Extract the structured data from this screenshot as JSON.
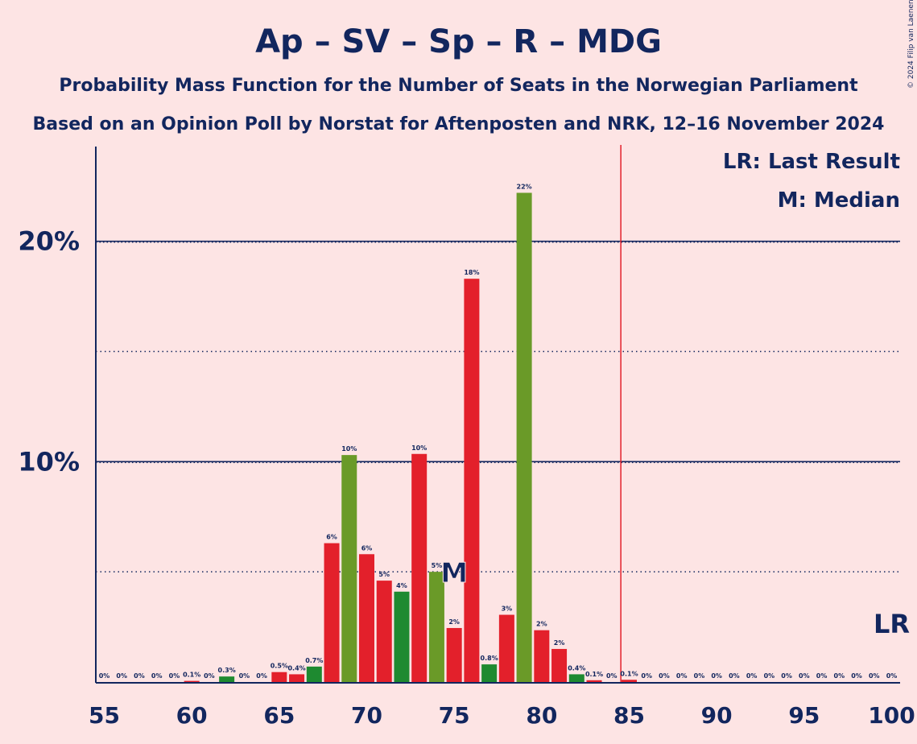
{
  "title": "Ap – SV – Sp – R – MDG",
  "subtitle1": "Probability Mass Function for the Number of Seats in the Norwegian Parliament",
  "subtitle2": "Based on an Opinion Poll by Norstat for Aftenposten and NRK, 12–16 November 2024",
  "copyright": "© 2024 Filip van Laenen",
  "legend": {
    "last_result": "LR: Last Result",
    "median": "M: Median"
  },
  "colors": {
    "background": "#FDE4E4",
    "text": "#12265e",
    "red": "#E3202B",
    "green": "#6A9A28",
    "darkgreen": "#1E8A30",
    "lr_line": "#E3202B"
  },
  "chart_data": {
    "type": "bar",
    "xlabel": "",
    "ylabel": "",
    "xlim": [
      55,
      100
    ],
    "ylim": [
      0,
      24.3
    ],
    "y_ticks": [
      {
        "value": 10,
        "label": "10%"
      },
      {
        "value": 20,
        "label": "20%"
      }
    ],
    "y_dotted": [
      5,
      15
    ],
    "x_ticks": [
      55,
      60,
      65,
      70,
      75,
      80,
      85,
      90,
      95,
      100
    ],
    "last_result": 85,
    "last_result_label": "LR",
    "median": 75,
    "median_label": "M",
    "median_value": 5,
    "bars": [
      {
        "x": 55,
        "value": 0,
        "label": "0%",
        "color": "red"
      },
      {
        "x": 56,
        "value": 0,
        "label": "0%",
        "color": "red"
      },
      {
        "x": 57,
        "value": 0,
        "label": "0%",
        "color": "red"
      },
      {
        "x": 58,
        "value": 0,
        "label": "0%",
        "color": "red"
      },
      {
        "x": 59,
        "value": 0,
        "label": "0%",
        "color": "red"
      },
      {
        "x": 60,
        "value": 0.05,
        "label": "0.1%",
        "color": "red"
      },
      {
        "x": 61,
        "value": 0,
        "label": "0%",
        "color": "red"
      },
      {
        "x": 62,
        "value": 0.25,
        "label": "0.3%",
        "color": "darkgreen"
      },
      {
        "x": 63,
        "value": 0,
        "label": "0%",
        "color": "red"
      },
      {
        "x": 64,
        "value": 0,
        "label": "0%",
        "color": "red"
      },
      {
        "x": 65,
        "value": 0.45,
        "label": "0.5%",
        "color": "red"
      },
      {
        "x": 66,
        "value": 0.35,
        "label": "0.4%",
        "color": "red"
      },
      {
        "x": 67,
        "value": 0.7,
        "label": "0.7%",
        "color": "darkgreen"
      },
      {
        "x": 68,
        "value": 6.3,
        "label": "6%",
        "color": "red"
      },
      {
        "x": 69,
        "value": 10.3,
        "label": "10%",
        "color": "green"
      },
      {
        "x": 70,
        "value": 5.8,
        "label": "6%",
        "color": "red"
      },
      {
        "x": 71,
        "value": 4.6,
        "label": "5%",
        "color": "red"
      },
      {
        "x": 72,
        "value": 4.1,
        "label": "4%",
        "color": "darkgreen"
      },
      {
        "x": 73,
        "value": 10.35,
        "label": "10%",
        "color": "red"
      },
      {
        "x": 74,
        "value": 5.0,
        "label": "5%",
        "color": "green"
      },
      {
        "x": 75,
        "value": 2.45,
        "label": "2%",
        "color": "red"
      },
      {
        "x": 76,
        "value": 18.3,
        "label": "18%",
        "color": "red"
      },
      {
        "x": 77,
        "value": 0.8,
        "label": "0.8%",
        "color": "darkgreen"
      },
      {
        "x": 78,
        "value": 3.05,
        "label": "3%",
        "color": "red"
      },
      {
        "x": 79,
        "value": 22.2,
        "label": "22%",
        "color": "green"
      },
      {
        "x": 80,
        "value": 2.35,
        "label": "2%",
        "color": "red"
      },
      {
        "x": 81,
        "value": 1.5,
        "label": "2%",
        "color": "red"
      },
      {
        "x": 82,
        "value": 0.35,
        "label": "0.4%",
        "color": "darkgreen"
      },
      {
        "x": 83,
        "value": 0.08,
        "label": "0.1%",
        "color": "red"
      },
      {
        "x": 84,
        "value": 0,
        "label": "0%",
        "color": "red"
      },
      {
        "x": 85,
        "value": 0.1,
        "label": "0.1%",
        "color": "red"
      },
      {
        "x": 86,
        "value": 0,
        "label": "0%",
        "color": "red"
      },
      {
        "x": 87,
        "value": 0,
        "label": "0%",
        "color": "red"
      },
      {
        "x": 88,
        "value": 0,
        "label": "0%",
        "color": "red"
      },
      {
        "x": 89,
        "value": 0,
        "label": "0%",
        "color": "red"
      },
      {
        "x": 90,
        "value": 0,
        "label": "0%",
        "color": "red"
      },
      {
        "x": 91,
        "value": 0,
        "label": "0%",
        "color": "red"
      },
      {
        "x": 92,
        "value": 0,
        "label": "0%",
        "color": "red"
      },
      {
        "x": 93,
        "value": 0,
        "label": "0%",
        "color": "red"
      },
      {
        "x": 94,
        "value": 0,
        "label": "0%",
        "color": "red"
      },
      {
        "x": 95,
        "value": 0,
        "label": "0%",
        "color": "red"
      },
      {
        "x": 96,
        "value": 0,
        "label": "0%",
        "color": "red"
      },
      {
        "x": 97,
        "value": 0,
        "label": "0%",
        "color": "red"
      },
      {
        "x": 98,
        "value": 0,
        "label": "0%",
        "color": "red"
      },
      {
        "x": 99,
        "value": 0,
        "label": "0%",
        "color": "red"
      },
      {
        "x": 100,
        "value": 0,
        "label": "0%",
        "color": "red"
      }
    ]
  }
}
